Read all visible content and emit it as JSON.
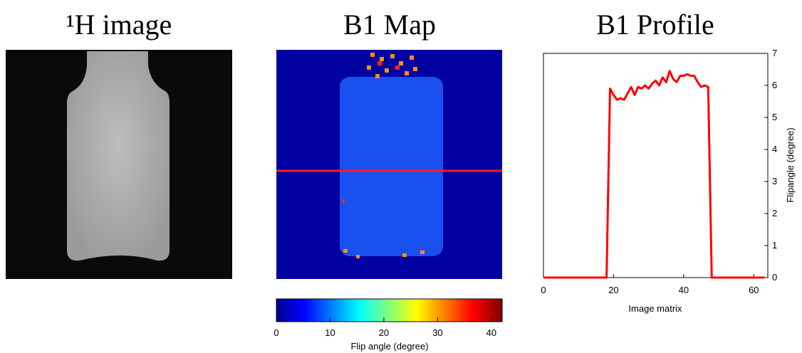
{
  "panels": [
    {
      "title": "¹H image"
    },
    {
      "title": "B1 Map",
      "colorbar": {
        "label": "Flip angle (degree)",
        "lim": [
          0,
          42
        ],
        "ticks": [
          0,
          10,
          20,
          30,
          40
        ]
      }
    }
  ],
  "chart_data": {
    "type": "line",
    "title": "B1 Profile",
    "x_label": "Image matrix",
    "y_label": "Flipangle (degree)",
    "x": [
      0,
      1,
      2,
      3,
      4,
      5,
      6,
      7,
      8,
      9,
      10,
      11,
      12,
      13,
      14,
      15,
      16,
      17,
      18,
      19,
      20,
      21,
      22,
      23,
      24,
      25,
      26,
      27,
      28,
      29,
      30,
      31,
      32,
      33,
      34,
      35,
      36,
      37,
      38,
      39,
      40,
      41,
      42,
      43,
      44,
      45,
      46,
      47,
      48,
      49,
      50,
      51,
      52,
      53,
      54,
      55,
      56,
      57,
      58,
      59,
      60,
      61,
      62,
      63
    ],
    "series": [
      {
        "color": "#ff0000",
        "values": [
          0,
          0,
          0,
          0,
          0,
          0,
          0,
          0,
          0,
          0,
          0,
          0,
          0,
          0,
          0,
          0,
          0,
          0,
          0,
          5.9,
          5.7,
          5.55,
          5.6,
          5.55,
          5.75,
          5.95,
          5.7,
          5.95,
          5.9,
          6.0,
          5.9,
          6.05,
          6.15,
          6.0,
          6.25,
          6.1,
          6.45,
          6.2,
          6.1,
          6.3,
          6.3,
          6.35,
          6.3,
          6.3,
          6.1,
          5.95,
          6.0,
          5.95,
          0,
          0,
          0,
          0,
          0,
          0,
          0,
          0,
          0,
          0,
          0,
          0,
          0,
          0,
          0,
          0
        ]
      }
    ],
    "xlim": [
      0,
      64
    ],
    "xticks": [
      0,
      20,
      40,
      60
    ],
    "ylim": [
      0,
      7
    ],
    "yticks": [
      0,
      1,
      2,
      3,
      4,
      5,
      6,
      7
    ],
    "y_axis_side": "right"
  }
}
